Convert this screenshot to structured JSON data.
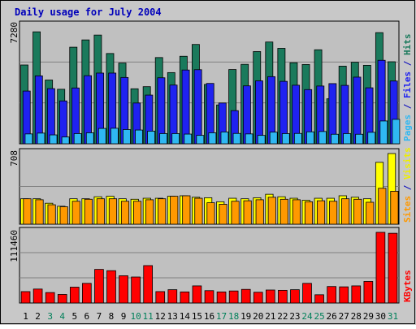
{
  "chart_data": [
    {
      "type": "bar",
      "panel": "hits-files-pages",
      "title": "Daily usage for July 2004",
      "y_max_label": "7280",
      "ylim": [
        0,
        7280
      ],
      "categories": [
        "1",
        "2",
        "3",
        "4",
        "5",
        "6",
        "7",
        "8",
        "9",
        "10",
        "11",
        "12",
        "13",
        "14",
        "15",
        "16",
        "17",
        "18",
        "19",
        "20",
        "21",
        "22",
        "23",
        "24",
        "25",
        "26",
        "27",
        "28",
        "29",
        "30",
        "31"
      ],
      "series": [
        {
          "name": "Hits",
          "color": "#1a7a5c",
          "values": [
            4870,
            6920,
            3940,
            3370,
            5970,
            6420,
            6720,
            5580,
            4990,
            3400,
            3530,
            5330,
            4400,
            5410,
            6140,
            3670,
            2400,
            4590,
            4910,
            5700,
            6290,
            5900,
            5010,
            4900,
            5810,
            2780,
            4800,
            5040,
            4850,
            6870,
            5070
          ]
        },
        {
          "name": "Files",
          "color": "#1f22f0",
          "values": [
            3260,
            4200,
            3410,
            2650,
            3450,
            4210,
            4370,
            4370,
            4100,
            2520,
            3010,
            4080,
            3630,
            4560,
            4580,
            3730,
            2520,
            2050,
            3580,
            3890,
            4150,
            3860,
            3620,
            3350,
            3570,
            3720,
            3610,
            4120,
            3460,
            5160,
            3880
          ]
        },
        {
          "name": "Pages",
          "color": "#2fb8f2",
          "values": [
            610,
            660,
            550,
            420,
            630,
            680,
            950,
            960,
            880,
            850,
            780,
            630,
            630,
            600,
            520,
            680,
            730,
            640,
            610,
            520,
            720,
            630,
            640,
            740,
            760,
            590,
            630,
            590,
            710,
            1410,
            1510
          ]
        }
      ]
    },
    {
      "type": "bar",
      "panel": "visits-sites",
      "y_max_label": "708",
      "ylim": [
        0,
        708
      ],
      "categories": [
        "1",
        "2",
        "3",
        "4",
        "5",
        "6",
        "7",
        "8",
        "9",
        "10",
        "11",
        "12",
        "13",
        "14",
        "15",
        "16",
        "17",
        "18",
        "19",
        "20",
        "21",
        "22",
        "23",
        "24",
        "25",
        "26",
        "27",
        "28",
        "29",
        "30",
        "31"
      ],
      "series": [
        {
          "name": "Visits",
          "color": "#ffff00",
          "values": [
            255,
            255,
            210,
            180,
            255,
            255,
            275,
            280,
            255,
            250,
            260,
            260,
            280,
            285,
            270,
            265,
            225,
            260,
            255,
            265,
            300,
            275,
            260,
            240,
            260,
            260,
            285,
            270,
            255,
            620,
            708
          ]
        },
        {
          "name": "Sites",
          "color": "#ff9900",
          "values": [
            255,
            245,
            195,
            175,
            230,
            250,
            255,
            255,
            230,
            230,
            245,
            255,
            280,
            285,
            260,
            215,
            200,
            230,
            235,
            245,
            270,
            250,
            245,
            225,
            235,
            230,
            255,
            250,
            220,
            360,
            330
          ]
        }
      ]
    },
    {
      "type": "bar",
      "panel": "kbytes",
      "y_max_label": "111460",
      "ylim": [
        0,
        111460
      ],
      "categories": [
        "1",
        "2",
        "3",
        "4",
        "5",
        "6",
        "7",
        "8",
        "9",
        "10",
        "11",
        "12",
        "13",
        "14",
        "15",
        "16",
        "17",
        "18",
        "19",
        "20",
        "21",
        "22",
        "23",
        "24",
        "25",
        "26",
        "27",
        "28",
        "29",
        "30",
        "31"
      ],
      "series": [
        {
          "name": "KBytes",
          "color": "#ff0000",
          "values": [
            18000,
            22000,
            16500,
            13500,
            25000,
            31000,
            53000,
            51000,
            43000,
            41000,
            59000,
            18000,
            21000,
            17500,
            27000,
            19500,
            17500,
            19000,
            21500,
            17000,
            20500,
            20000,
            21000,
            31000,
            13000,
            26000,
            25500,
            27000,
            34000,
            111460,
            110000
          ]
        }
      ]
    }
  ],
  "day_labels": [
    "1",
    "2",
    "3",
    "4",
    "5",
    "6",
    "7",
    "8",
    "9",
    "10",
    "11",
    "12",
    "13",
    "14",
    "15",
    "16",
    "17",
    "18",
    "19",
    "20",
    "21",
    "22",
    "23",
    "24",
    "25",
    "26",
    "27",
    "28",
    "29",
    "30",
    "31"
  ],
  "weekend_days": [
    3,
    4,
    10,
    11,
    17,
    18,
    24,
    25,
    31
  ],
  "colors": {
    "frame": "#c8c8c8",
    "plot_bg": "#c0c0c0",
    "grid": "#808080",
    "title": "#0000bb",
    "weekend_label": "#00805a",
    "weekday_label": "#000000"
  },
  "side_labels": {
    "panel1": [
      {
        "text": "Pages",
        "color": "#2fb8f2"
      },
      {
        "text": " / ",
        "color": "#0000bb"
      },
      {
        "text": "Files",
        "color": "#1f22f0"
      },
      {
        "text": " / ",
        "color": "#0000bb"
      },
      {
        "text": "Hits",
        "color": "#1a7a5c"
      }
    ],
    "panel2": [
      {
        "text": "Sites",
        "color": "#ff9900"
      },
      {
        "text": " / ",
        "color": "#0000bb"
      },
      {
        "text": "Visits",
        "color": "#eeee00"
      }
    ],
    "panel3": [
      {
        "text": "KBytes",
        "color": "#ff0000"
      }
    ]
  }
}
